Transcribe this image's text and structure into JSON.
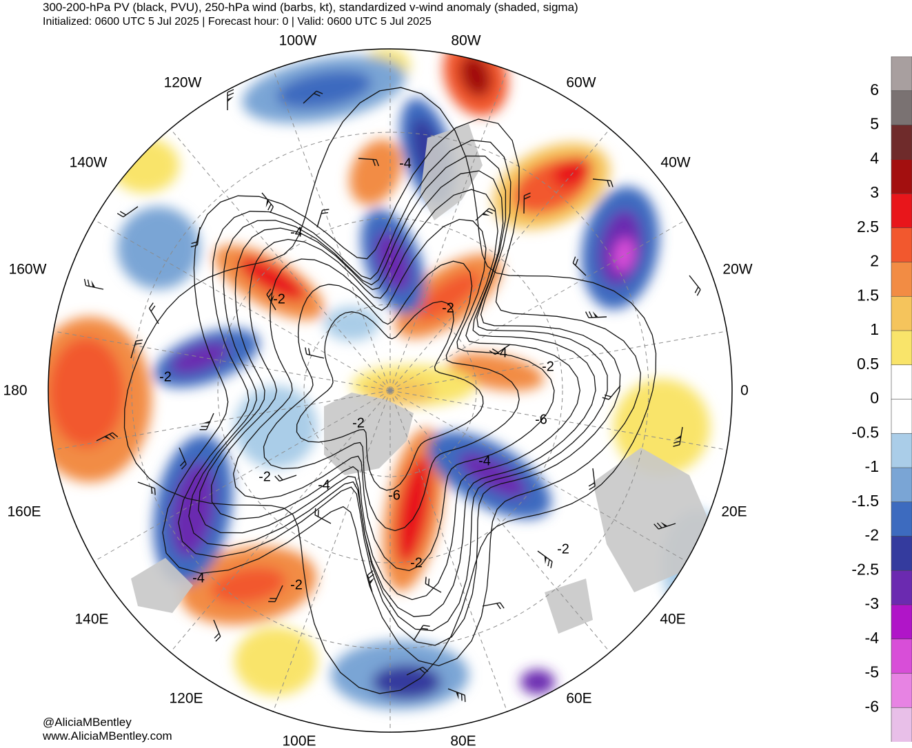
{
  "header": {
    "title": "300-200-hPa PV (black, PVU), 250-hPa wind (barbs, kt), standardized v-wind anomaly (shaded, sigma)",
    "subtitle": "Initialized: 0600 UTC 5 Jul 2025 | Forecast hour: 0 | Valid: 0600 UTC 5 Jul 2025"
  },
  "map": {
    "projection": "north-polar-stereographic",
    "longitude_labels": [
      "100W",
      "80W",
      "120W",
      "60W",
      "140W",
      "40W",
      "160W",
      "20W",
      "180",
      "0",
      "160E",
      "20E",
      "140E",
      "40E",
      "120E",
      "60E",
      "100E",
      "80E"
    ],
    "contour_labels": [
      "-4",
      "-4",
      "-2",
      "-2",
      "-2",
      "-4",
      "-2",
      "-6",
      "-4",
      "-2",
      "-4",
      "-6",
      "-2",
      "-2",
      "-4",
      "-2",
      "-2"
    ],
    "land_color": "#c8c8c8",
    "graticule_color": "#8a8a8a"
  },
  "colorbar": {
    "tick_labels": [
      "6",
      "5",
      "4",
      "3",
      "2.5",
      "2",
      "1.5",
      "1",
      "0.5",
      "0",
      "-0.5",
      "-1",
      "-1.5",
      "-2",
      "-2.5",
      "-3",
      "-4",
      "-5",
      "-6"
    ],
    "colors": [
      "#a89f9f",
      "#7a7272",
      "#6f2b2b",
      "#a30f0f",
      "#e8161b",
      "#f2582e",
      "#f28c44",
      "#f5c45c",
      "#f9e46a",
      "#ffffff",
      "#ffffff",
      "#aacde8",
      "#7aa5d5",
      "#3d6bbf",
      "#343b9e",
      "#6b2ab0",
      "#b015c8",
      "#d84ed8",
      "#e783e3",
      "#e8bfe8"
    ]
  },
  "credits": {
    "handle": "@AliciaMBentley",
    "website": "www.AliciaMBentley.com"
  }
}
